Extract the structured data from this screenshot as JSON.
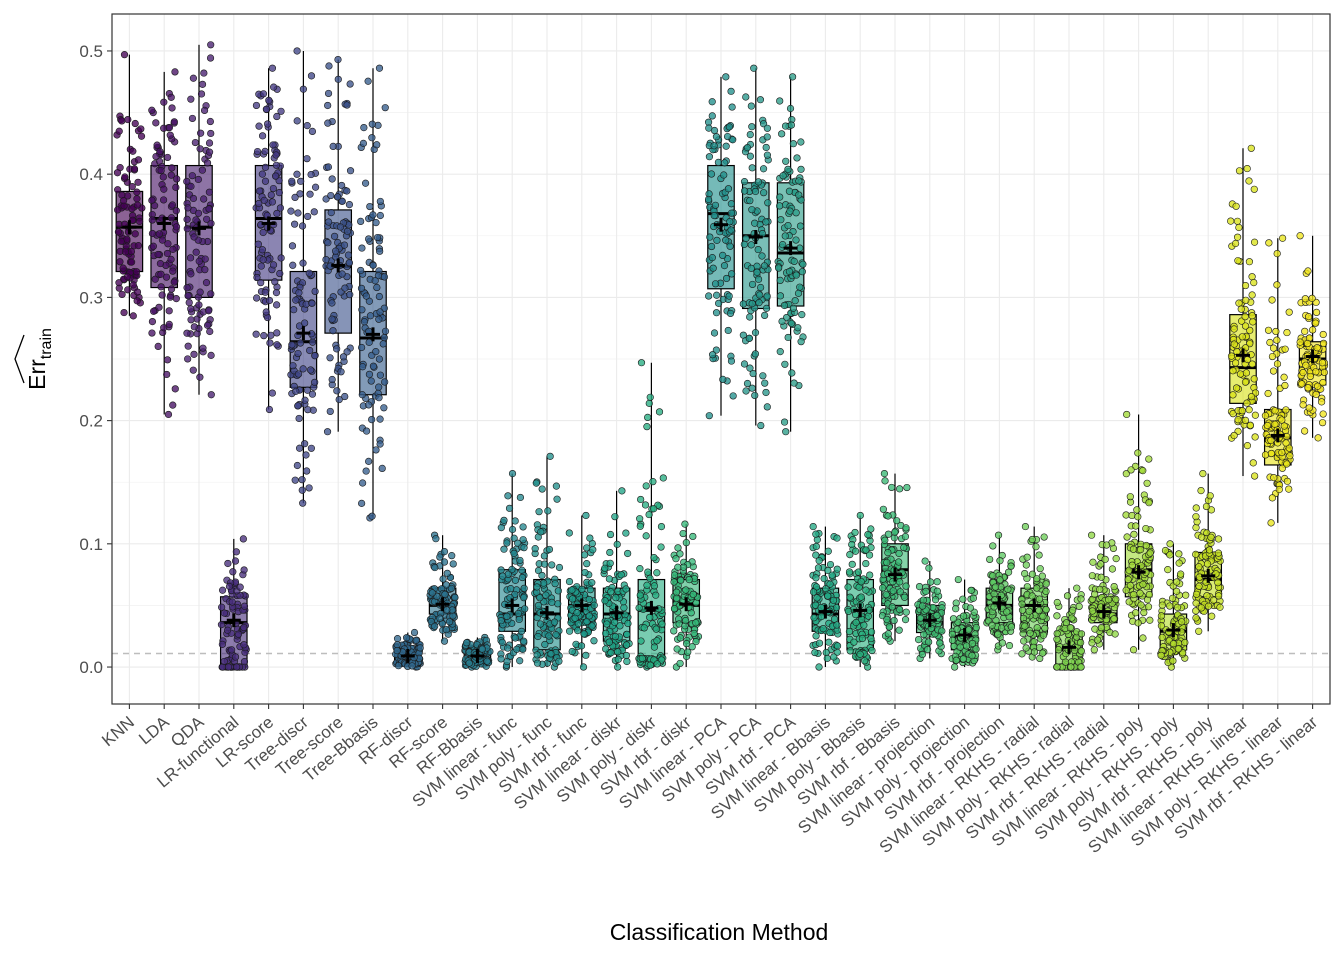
{
  "chart_data": {
    "type": "boxplot",
    "xlabel": "Classification Method",
    "ylabel": "Err",
    "ylabel_subscript": "train",
    "ylim": [
      -0.03,
      0.53
    ],
    "y_ticks": [
      "0.0",
      "0.1",
      "0.2",
      "0.3",
      "0.4",
      "0.5"
    ],
    "y_tick_values": [
      0,
      0.1,
      0.2,
      0.3,
      0.4,
      0.5
    ],
    "reference_line": {
      "y": 0.011,
      "style": "dashed",
      "color": "#bdbdbd"
    },
    "grid": true,
    "points_per_method": 100,
    "categories": [
      "KNN",
      "LDA",
      "QDA",
      "LR-functional",
      "LR-score",
      "Tree-discr",
      "Tree-score",
      "Tree-Bbasis",
      "RF-discr",
      "RF-score",
      "RF-Bbasis",
      "SVM linear - func",
      "SVM poly - func",
      "SVM rbf - func",
      "SVM linear - diskr",
      "SVM poly - diskr",
      "SVM rbf - diskr",
      "SVM linear - PCA",
      "SVM poly - PCA",
      "SVM rbf - PCA",
      "SVM linear - Bbasis",
      "SVM poly - Bbasis",
      "SVM rbf - Bbasis",
      "SVM linear - projection",
      "SVM poly - projection",
      "SVM rbf - projection",
      "SVM linear - RKHS - radial",
      "SVM poly - RKHS - radial",
      "SVM rbf - RKHS - radial",
      "SVM linear - RKHS - poly",
      "SVM poly - RKHS - poly",
      "SVM rbf - RKHS - poly",
      "SVM linear - RKHS - linear",
      "SVM poly - RKHS - linear",
      "SVM rbf - RKHS - linear"
    ],
    "series": [
      {
        "name": "KNN",
        "min": 0.285,
        "q1": 0.321,
        "median": 0.357,
        "q3": 0.386,
        "max": 0.497,
        "mean": 0.357,
        "color": "#440154"
      },
      {
        "name": "LDA",
        "min": 0.205,
        "q1": 0.308,
        "median": 0.364,
        "q3": 0.407,
        "max": 0.483,
        "mean": 0.36,
        "color": "#471164"
      },
      {
        "name": "QDA",
        "min": 0.221,
        "q1": 0.3,
        "median": 0.357,
        "q3": 0.407,
        "max": 0.505,
        "mean": 0.356,
        "color": "#481F70"
      },
      {
        "name": "LR-functional",
        "min": 0.0,
        "q1": 0.0,
        "median": 0.036,
        "q3": 0.057,
        "max": 0.104,
        "mean": 0.038,
        "color": "#472D7B"
      },
      {
        "name": "LR-score",
        "min": 0.209,
        "q1": 0.314,
        "median": 0.364,
        "q3": 0.407,
        "max": 0.486,
        "mean": 0.36,
        "color": "#443A83"
      },
      {
        "name": "Tree-discr",
        "min": 0.133,
        "q1": 0.227,
        "median": 0.264,
        "q3": 0.321,
        "max": 0.5,
        "mean": 0.271,
        "color": "#404688"
      },
      {
        "name": "Tree-score",
        "min": 0.191,
        "q1": 0.271,
        "median": 0.325,
        "q3": 0.371,
        "max": 0.493,
        "mean": 0.326,
        "color": "#3B528B"
      },
      {
        "name": "Tree-Bbasis",
        "min": 0.121,
        "q1": 0.221,
        "median": 0.267,
        "q3": 0.321,
        "max": 0.486,
        "mean": 0.27,
        "color": "#365D8D"
      },
      {
        "name": "RF-discr",
        "min": 0.0,
        "q1": 0.004,
        "median": 0.007,
        "q3": 0.014,
        "max": 0.028,
        "mean": 0.009,
        "color": "#31688E"
      },
      {
        "name": "RF-score",
        "min": 0.021,
        "q1": 0.043,
        "median": 0.05,
        "q3": 0.064,
        "max": 0.107,
        "mean": 0.051,
        "color": "#2C728E"
      },
      {
        "name": "RF-Bbasis",
        "min": 0.0,
        "q1": 0.004,
        "median": 0.007,
        "q3": 0.014,
        "max": 0.024,
        "mean": 0.009,
        "color": "#287C8E"
      },
      {
        "name": "SVM linear - func",
        "min": 0.0,
        "q1": 0.029,
        "median": 0.043,
        "q3": 0.079,
        "max": 0.157,
        "mean": 0.05,
        "color": "#24868E"
      },
      {
        "name": "SVM poly - func",
        "min": 0.0,
        "q1": 0.014,
        "median": 0.043,
        "q3": 0.071,
        "max": 0.171,
        "mean": 0.044,
        "color": "#21908C"
      },
      {
        "name": "SVM rbf - func",
        "min": 0.0,
        "q1": 0.036,
        "median": 0.05,
        "q3": 0.064,
        "max": 0.123,
        "mean": 0.05,
        "color": "#1F9A8A"
      },
      {
        "name": "SVM linear - diskr",
        "min": 0.0,
        "q1": 0.021,
        "median": 0.043,
        "q3": 0.064,
        "max": 0.143,
        "mean": 0.044,
        "color": "#20A486"
      },
      {
        "name": "SVM poly - diskr",
        "min": 0.0,
        "q1": 0.007,
        "median": 0.046,
        "q3": 0.071,
        "max": 0.247,
        "mean": 0.048,
        "color": "#27AD81"
      },
      {
        "name": "SVM rbf - diskr",
        "min": 0.0,
        "q1": 0.036,
        "median": 0.05,
        "q3": 0.071,
        "max": 0.116,
        "mean": 0.051,
        "color": "#35B779"
      },
      {
        "name": "SVM linear - PCA",
        "min": 0.204,
        "q1": 0.307,
        "median": 0.368,
        "q3": 0.407,
        "max": 0.479,
        "mean": 0.359,
        "color": "#21908C"
      },
      {
        "name": "SVM poly - PCA",
        "min": 0.196,
        "q1": 0.291,
        "median": 0.35,
        "q3": 0.393,
        "max": 0.486,
        "mean": 0.349,
        "color": "#26968A"
      },
      {
        "name": "SVM rbf - PCA",
        "min": 0.191,
        "q1": 0.293,
        "median": 0.336,
        "q3": 0.393,
        "max": 0.479,
        "mean": 0.34,
        "color": "#2A9C88"
      },
      {
        "name": "SVM linear - Bbasis",
        "min": 0.0,
        "q1": 0.029,
        "median": 0.043,
        "q3": 0.064,
        "max": 0.114,
        "mean": 0.045,
        "color": "#22A884"
      },
      {
        "name": "SVM poly - Bbasis",
        "min": 0.0,
        "q1": 0.014,
        "median": 0.046,
        "q3": 0.071,
        "max": 0.123,
        "mean": 0.046,
        "color": "#2AB07F"
      },
      {
        "name": "SVM rbf - Bbasis",
        "min": 0.021,
        "q1": 0.05,
        "median": 0.079,
        "q3": 0.1,
        "max": 0.157,
        "mean": 0.075,
        "color": "#3AB875"
      },
      {
        "name": "SVM linear - projection",
        "min": 0.007,
        "q1": 0.028,
        "median": 0.036,
        "q3": 0.05,
        "max": 0.086,
        "mean": 0.038,
        "color": "#3FBC73"
      },
      {
        "name": "SVM poly - projection",
        "min": 0.0,
        "q1": 0.014,
        "median": 0.025,
        "q3": 0.036,
        "max": 0.071,
        "mean": 0.026,
        "color": "#4EC36B"
      },
      {
        "name": "SVM rbf - projection",
        "min": 0.014,
        "q1": 0.036,
        "median": 0.05,
        "q3": 0.064,
        "max": 0.107,
        "mean": 0.052,
        "color": "#5DC863"
      },
      {
        "name": "SVM linear - RKHS - radial",
        "min": 0.007,
        "q1": 0.028,
        "median": 0.05,
        "q3": 0.064,
        "max": 0.114,
        "mean": 0.05,
        "color": "#6DCD59"
      },
      {
        "name": "SVM poly - RKHS - radial",
        "min": 0.0,
        "q1": 0.0,
        "median": 0.014,
        "q3": 0.029,
        "max": 0.064,
        "mean": 0.016,
        "color": "#7FD34E"
      },
      {
        "name": "SVM rbf - RKHS - radial",
        "min": 0.014,
        "q1": 0.036,
        "median": 0.043,
        "q3": 0.057,
        "max": 0.107,
        "mean": 0.045,
        "color": "#8FD744"
      },
      {
        "name": "SVM linear - RKHS - poly",
        "min": 0.014,
        "q1": 0.057,
        "median": 0.079,
        "q3": 0.1,
        "max": 0.205,
        "mean": 0.077,
        "color": "#A2DA37"
      },
      {
        "name": "SVM poly - RKHS - poly",
        "min": 0.0,
        "q1": 0.014,
        "median": 0.029,
        "q3": 0.043,
        "max": 0.1,
        "mean": 0.03,
        "color": "#B4DE2C"
      },
      {
        "name": "SVM rbf - RKHS - poly",
        "min": 0.029,
        "q1": 0.057,
        "median": 0.071,
        "q3": 0.093,
        "max": 0.157,
        "mean": 0.074,
        "color": "#C5E021"
      },
      {
        "name": "SVM linear - RKHS - linear",
        "min": 0.155,
        "q1": 0.214,
        "median": 0.243,
        "q3": 0.286,
        "max": 0.421,
        "mean": 0.253,
        "color": "#D8E219"
      },
      {
        "name": "SVM poly - RKHS - linear",
        "min": 0.117,
        "q1": 0.164,
        "median": 0.186,
        "q3": 0.209,
        "max": 0.348,
        "mean": 0.188,
        "color": "#E8E419"
      },
      {
        "name": "SVM rbf - RKHS - linear",
        "min": 0.186,
        "q1": 0.229,
        "median": 0.25,
        "q3": 0.264,
        "max": 0.35,
        "mean": 0.252,
        "color": "#F1E51D"
      }
    ]
  }
}
